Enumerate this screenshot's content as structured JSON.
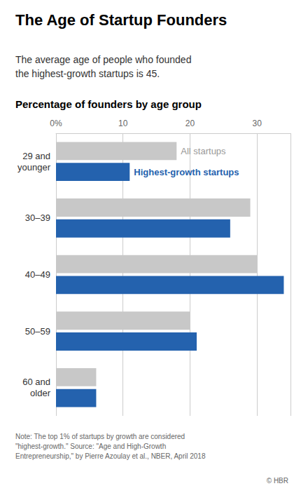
{
  "chart_data": {
    "type": "bar",
    "orientation": "horizontal",
    "title": "The Age of Startup Founders",
    "subtitle": "The average age of people who founded\nthe highest-growth startups is 45.",
    "xlabel": "Percentage of founders by age group",
    "categories": [
      "29 and\nyounger",
      "30–39",
      "40–49",
      "50–59",
      "60 and\nolder"
    ],
    "series": [
      {
        "name": "All startups",
        "color": "#c8c8c8",
        "values": [
          18,
          29,
          30,
          20,
          6
        ]
      },
      {
        "name": "Highest-growth startups",
        "color": "#2462ae",
        "values": [
          11,
          26,
          34,
          21,
          6
        ]
      }
    ],
    "xlim": [
      0,
      35
    ],
    "xticks": [
      {
        "value": 0,
        "label": "0%"
      },
      10,
      20,
      30
    ],
    "grid": true,
    "annotations": [
      "Note: The top 1% of startups by growth are considered\n\"highest-growth.\" Source: \"Age and High-Growth\nEntrepreneurship,\" by Pierre Azoulay et al., NBER, April 2018",
      "© HBR"
    ]
  }
}
